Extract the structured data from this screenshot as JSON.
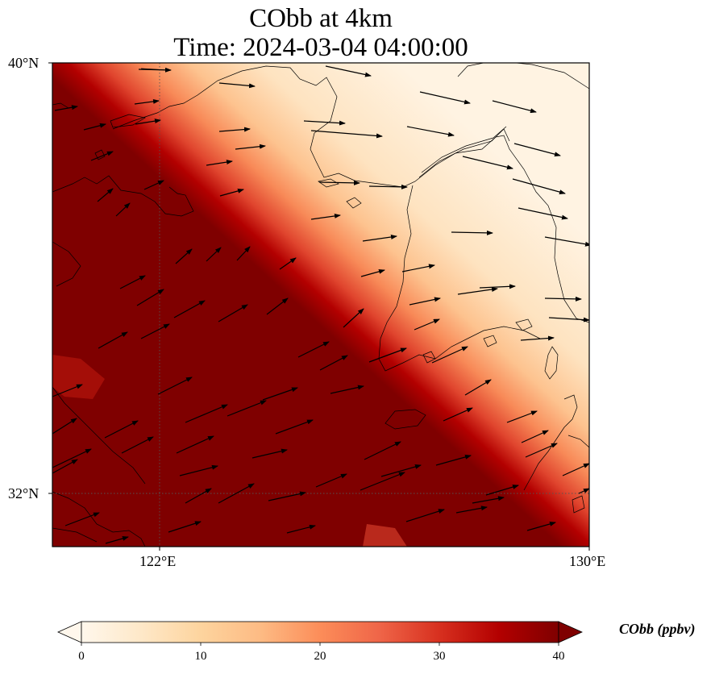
{
  "title": {
    "line1": "CObb at 4km",
    "line2": "Time: 2024-03-04 04:00:00"
  },
  "map": {
    "variable": "CObb",
    "level": "4km",
    "lon_range": [
      120.4,
      130.0
    ],
    "lat_range": [
      31.2,
      40.0
    ],
    "gridlines": {
      "lon": 122,
      "lat": 32
    },
    "lat_labels": [
      "40°N",
      "32°N"
    ],
    "lon_labels": [
      "122°E",
      "130°E"
    ],
    "field_description": "high CObb (dark red) over the southwest; low values northeast",
    "wind_vectors": "arrows mostly pointing east-northeast"
  },
  "colorbar": {
    "label": "CObb (ppbv)",
    "min": 0,
    "max": 40,
    "ticks": [
      "0",
      "10",
      "20",
      "30",
      "40"
    ],
    "extend": "both",
    "colors": [
      "#fff7ec",
      "#fee8c8",
      "#fdd49e",
      "#fdbb84",
      "#fc8d59",
      "#ef6548",
      "#d7301f",
      "#b30000",
      "#7f0000"
    ]
  }
}
